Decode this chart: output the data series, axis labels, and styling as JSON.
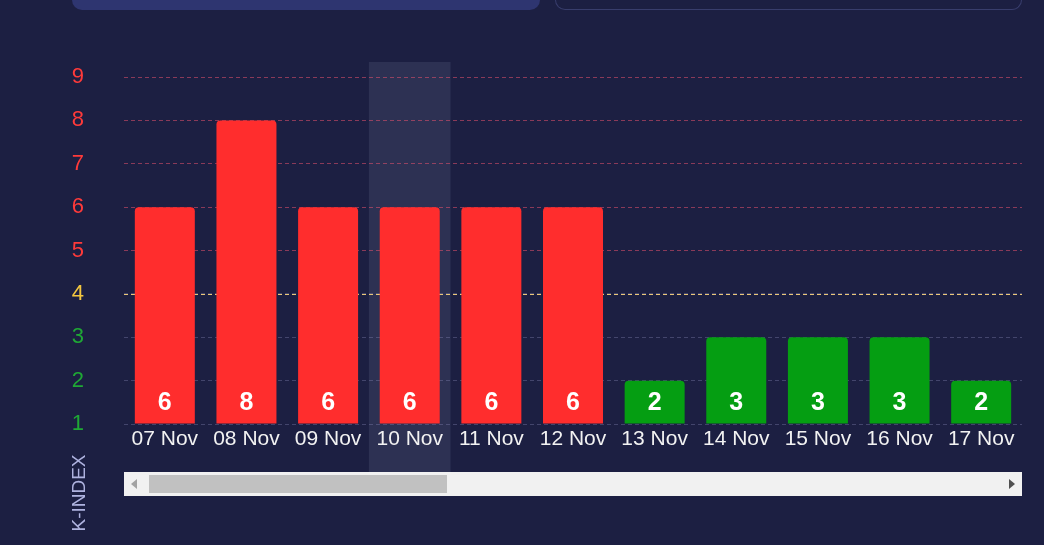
{
  "chart_data": {
    "type": "bar",
    "categories": [
      "07 Nov",
      "08 Nov",
      "09 Nov",
      "10 Nov",
      "11 Nov",
      "12 Nov",
      "13 Nov",
      "14 Nov",
      "15 Nov",
      "16 Nov",
      "17 Nov"
    ],
    "values": [
      6,
      8,
      6,
      6,
      6,
      6,
      2,
      3,
      3,
      3,
      2
    ],
    "colors": [
      "#ff2d2d",
      "#ff2d2d",
      "#ff2d2d",
      "#ff2d2d",
      "#ff2d2d",
      "#ff2d2d",
      "#059e12",
      "#059e12",
      "#059e12",
      "#059e12",
      "#059e12"
    ],
    "ylim": [
      1,
      9
    ],
    "yticks": [
      1,
      2,
      3,
      4,
      5,
      6,
      7,
      8,
      9
    ],
    "ylabel": "K-INDEX",
    "grid": "y",
    "data_labels": true,
    "ref_lines": [
      {
        "axis": "y",
        "value": 4,
        "color": "#ebc878",
        "line_style": "dashed"
      }
    ],
    "bands": [
      {
        "axis": "x",
        "from": "10 Nov",
        "to": "10 Nov",
        "color": "#2d3153"
      }
    ]
  }
}
